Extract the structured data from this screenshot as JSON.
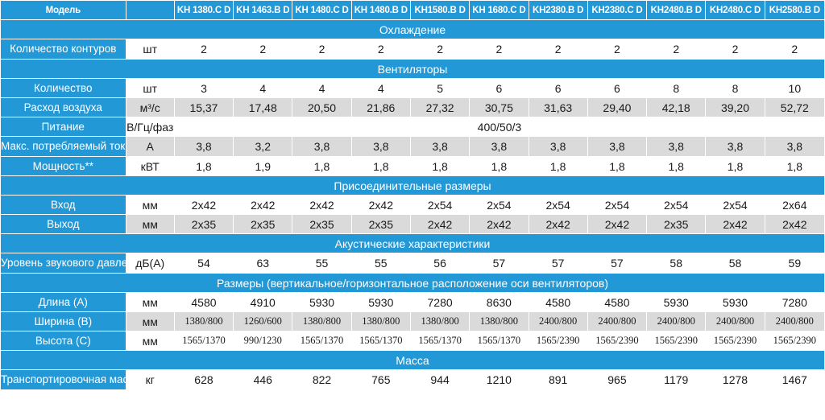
{
  "header": {
    "label": "Модель",
    "unit": "",
    "models": [
      "KH 1380.C D",
      "KH 1463.B D",
      "KH 1480.C D",
      "KH 1480.B D",
      "KH1580.B D",
      "KH 1680.C D",
      "KH2380.B D",
      "KH2380.C D",
      "KH2480.B D",
      "KH2480.C D",
      "KH2580.B D"
    ]
  },
  "rows": [
    {
      "type": "section",
      "title": "Охлаждение"
    },
    {
      "type": "data",
      "label": "Количество контуров",
      "unit": "шт",
      "values": [
        "2",
        "2",
        "2",
        "2",
        "2",
        "2",
        "2",
        "2",
        "2",
        "2",
        "2"
      ]
    },
    {
      "type": "section",
      "title": "Вентиляторы"
    },
    {
      "type": "data",
      "label": "Количество",
      "unit": "шт",
      "values": [
        "3",
        "4",
        "4",
        "4",
        "5",
        "6",
        "6",
        "6",
        "8",
        "8",
        "10"
      ]
    },
    {
      "type": "data",
      "label": "Расход воздуха",
      "unit": "м³/с",
      "values": [
        "15,37",
        "17,48",
        "20,50",
        "21,86",
        "27,32",
        "30,75",
        "31,63",
        "29,40",
        "42,18",
        "39,20",
        "52,72"
      ]
    },
    {
      "type": "span",
      "label": "Питание",
      "unit": "В/Гц/фаз",
      "value": "400/50/3"
    },
    {
      "type": "data",
      "label": "Макс. потребляемый ток **",
      "unit": "А",
      "values": [
        "3,8",
        "3,2",
        "3,8",
        "3,8",
        "3,8",
        "3,8",
        "3,8",
        "3,8",
        "3,8",
        "3,8",
        "3,8"
      ]
    },
    {
      "type": "data",
      "label": "Мощность**",
      "unit": "кВТ",
      "values": [
        "1,8",
        "1,9",
        "1,8",
        "1,8",
        "1,8",
        "1,8",
        "1,8",
        "1,8",
        "1,8",
        "1,8",
        "1,8"
      ]
    },
    {
      "type": "section",
      "title": "Присоединительные размеры"
    },
    {
      "type": "data",
      "label": "Вход",
      "unit": "мм",
      "values": [
        "2x42",
        "2x42",
        "2x42",
        "2x42",
        "2x54",
        "2x54",
        "2x54",
        "2x54",
        "2x54",
        "2x54",
        "2x64"
      ]
    },
    {
      "type": "data",
      "label": "Выход",
      "unit": "мм",
      "values": [
        "2x35",
        "2x35",
        "2x35",
        "2x35",
        "2x42",
        "2x42",
        "2x42",
        "2x42",
        "2x35",
        "2x42",
        "2x42"
      ]
    },
    {
      "type": "section",
      "title": "Акустические характеристики"
    },
    {
      "type": "data",
      "label": "Уровень звукового давления*",
      "unit": "дБ(А)",
      "values": [
        "54",
        "63",
        "55",
        "55",
        "56",
        "57",
        "57",
        "57",
        "58",
        "58",
        "59"
      ]
    },
    {
      "type": "section",
      "title": "Размеры (вертикальное/горизонтальное расположение оси вентиляторов)"
    },
    {
      "type": "data",
      "label": "Длина (А)",
      "unit": "мм",
      "values": [
        "4580",
        "4910",
        "5930",
        "5930",
        "7280",
        "8630",
        "4580",
        "4580",
        "5930",
        "5930",
        "7280"
      ]
    },
    {
      "type": "data",
      "label": "Ширина (В)",
      "unit": "мм",
      "small": true,
      "values": [
        "1380/800",
        "1260/600",
        "1380/800",
        "1380/800",
        "1380/800",
        "1380/800",
        "2400/800",
        "2400/800",
        "2400/800",
        "2400/800",
        "2400/800"
      ]
    },
    {
      "type": "data",
      "label": "Высота (С)",
      "unit": "мм",
      "small": true,
      "values": [
        "1565/1370",
        "990/1230",
        "1565/1370",
        "1565/1370",
        "1565/1370",
        "1565/1370",
        "1565/2390",
        "1565/2390",
        "1565/2390",
        "1565/2390",
        "1565/2390"
      ]
    },
    {
      "type": "section",
      "title": "Масса"
    },
    {
      "type": "data",
      "label": "Транспортировочная масса",
      "unit": "кг",
      "values": [
        "628",
        "446",
        "822",
        "765",
        "944",
        "1210",
        "891",
        "965",
        "1179",
        "1278",
        "1467"
      ]
    }
  ]
}
